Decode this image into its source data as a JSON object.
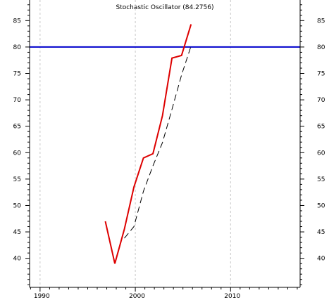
{
  "chart_data": {
    "type": "line",
    "title": "Stochastic Oscillator (84.2756)",
    "xlabel": "",
    "ylabel": "",
    "x_ticks": [
      {
        "value": 1990,
        "label": "1990"
      },
      {
        "value": 2000,
        "label": "2000"
      },
      {
        "value": 2010,
        "label": "2010"
      }
    ],
    "y_ticks": [
      40,
      45,
      50,
      55,
      60,
      65,
      70,
      75,
      80,
      85
    ],
    "xlim": [
      1988.9,
      2017.3
    ],
    "ylim": [
      34.5,
      88.9
    ],
    "grid": true,
    "reference_line": {
      "value": 80,
      "color": "#0000cc"
    },
    "series": [
      {
        "style": "solid",
        "color": "#dd0000",
        "points": [
          [
            1996.85,
            47.0
          ],
          [
            1997.85,
            39.0
          ],
          [
            1998.85,
            45.5
          ],
          [
            1999.85,
            53.5
          ],
          [
            2000.85,
            59.0
          ],
          [
            2001.85,
            59.8
          ],
          [
            2002.85,
            67.0
          ],
          [
            2003.85,
            77.9
          ],
          [
            2004.85,
            78.4
          ],
          [
            2005.85,
            84.3
          ]
        ]
      },
      {
        "style": "dashed",
        "color": "#000000",
        "points": [
          [
            1998.85,
            43.8
          ],
          [
            1999.85,
            46.0
          ],
          [
            2000.85,
            52.7
          ],
          [
            2001.85,
            57.5
          ],
          [
            2002.85,
            61.9
          ],
          [
            2003.85,
            68.2
          ],
          [
            2004.85,
            74.7
          ],
          [
            2005.85,
            80.2
          ]
        ]
      }
    ]
  }
}
